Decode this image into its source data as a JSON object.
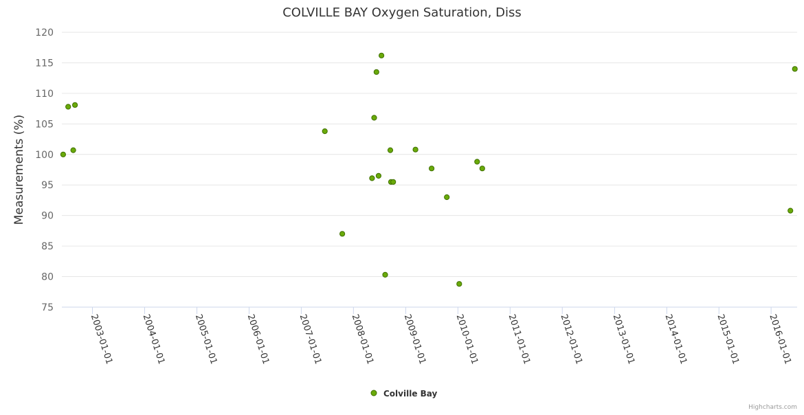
{
  "chart_data": {
    "type": "scatter",
    "title": "COLVILLE BAY Oxygen Saturation, Diss",
    "xlabel": "",
    "ylabel": "Measurements (%)",
    "ylim": [
      75,
      120
    ],
    "yticks": [
      75,
      80,
      85,
      90,
      95,
      100,
      105,
      110,
      115,
      120
    ],
    "xrange": [
      "2002-06-01",
      "2016-07-01"
    ],
    "xticks": [
      "2003-01-01",
      "2004-01-01",
      "2005-01-01",
      "2006-01-01",
      "2007-01-01",
      "2008-01-01",
      "2009-01-01",
      "2010-01-01",
      "2011-01-01",
      "2012-01-01",
      "2013-01-01",
      "2014-01-01",
      "2015-01-01",
      "2016-01-01"
    ],
    "grid": true,
    "legend_position": "bottom-center",
    "credits": "Highcharts.com",
    "colors": {
      "marker_fill": "#6aaa0a",
      "marker_stroke": "#3e6f00",
      "grid": "#e6e6e6",
      "axis": "#ccd6eb",
      "text": "#333333",
      "label": "#666666"
    },
    "series": [
      {
        "name": "Colville Bay",
        "points": [
          {
            "x": "2002-06-10",
            "y": 100.0
          },
          {
            "x": "2002-07-15",
            "y": 107.8
          },
          {
            "x": "2002-08-20",
            "y": 100.7
          },
          {
            "x": "2002-09-01",
            "y": 108.1
          },
          {
            "x": "2007-06-15",
            "y": 103.8
          },
          {
            "x": "2007-10-15",
            "y": 87.0
          },
          {
            "x": "2008-05-10",
            "y": 96.1
          },
          {
            "x": "2008-05-25",
            "y": 106.0
          },
          {
            "x": "2008-06-10",
            "y": 113.5
          },
          {
            "x": "2008-06-25",
            "y": 96.5
          },
          {
            "x": "2008-07-15",
            "y": 116.2
          },
          {
            "x": "2008-08-10",
            "y": 80.3
          },
          {
            "x": "2008-09-15",
            "y": 100.7
          },
          {
            "x": "2008-09-20",
            "y": 95.5
          },
          {
            "x": "2008-10-05",
            "y": 95.5
          },
          {
            "x": "2009-03-10",
            "y": 100.8
          },
          {
            "x": "2009-07-01",
            "y": 97.7
          },
          {
            "x": "2009-10-15",
            "y": 93.0
          },
          {
            "x": "2010-01-10",
            "y": 78.8
          },
          {
            "x": "2010-05-15",
            "y": 98.8
          },
          {
            "x": "2010-06-20",
            "y": 97.7
          },
          {
            "x": "2016-05-15",
            "y": 90.8
          },
          {
            "x": "2016-06-15",
            "y": 114.0
          }
        ]
      }
    ]
  }
}
